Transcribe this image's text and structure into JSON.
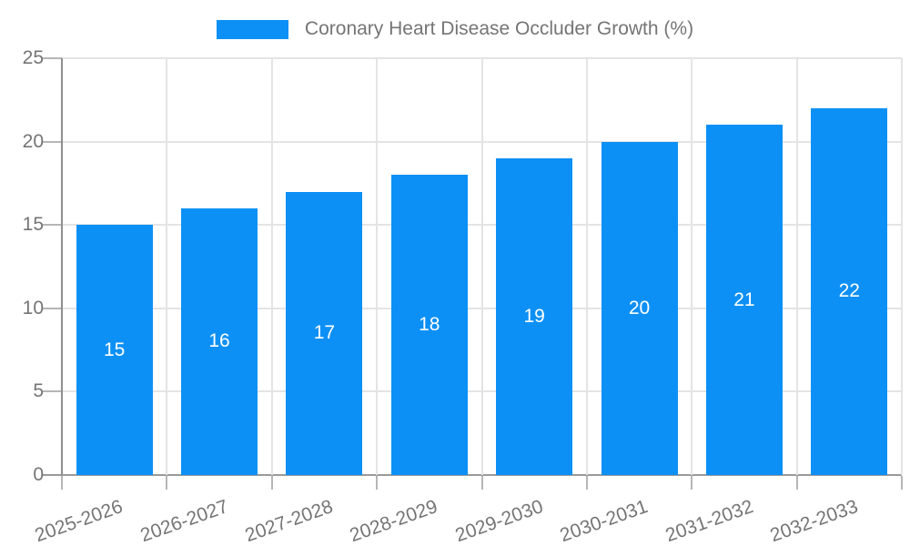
{
  "legend": {
    "label": "Coronary Heart Disease Occluder Growth (%)"
  },
  "chart_data": {
    "type": "bar",
    "title": "Coronary Heart Disease Occluder Growth (%)",
    "categories": [
      "2025-2026",
      "2026-2027",
      "2027-2028",
      "2028-2029",
      "2029-2030",
      "2030-2031",
      "2031-2032",
      "2032-2033"
    ],
    "series": [
      {
        "name": "Coronary Heart Disease Occluder Growth (%)",
        "values": [
          15,
          16,
          17,
          18,
          19,
          20,
          21,
          22
        ]
      }
    ],
    "bar_value_labels": [
      "15",
      "16",
      "17",
      "18",
      "19",
      "20",
      "21",
      "22"
    ],
    "xlabel": "",
    "ylabel": "",
    "ylim": [
      0,
      25
    ],
    "yticks": [
      0,
      5,
      10,
      15,
      20,
      25
    ],
    "grid": true,
    "legend_position": "top-center",
    "bar_label_position": "inside-middle",
    "colors": {
      "bar": "#0D90F5",
      "bar_label": "#FFFFFF",
      "axis_text": "#757575",
      "gridline": "#E4E4E4",
      "axis_line": "#9A9A9A",
      "y_axis_line": "#8F8F8F",
      "tick": "#B6B6B6",
      "background": "#FFFFFF"
    }
  }
}
